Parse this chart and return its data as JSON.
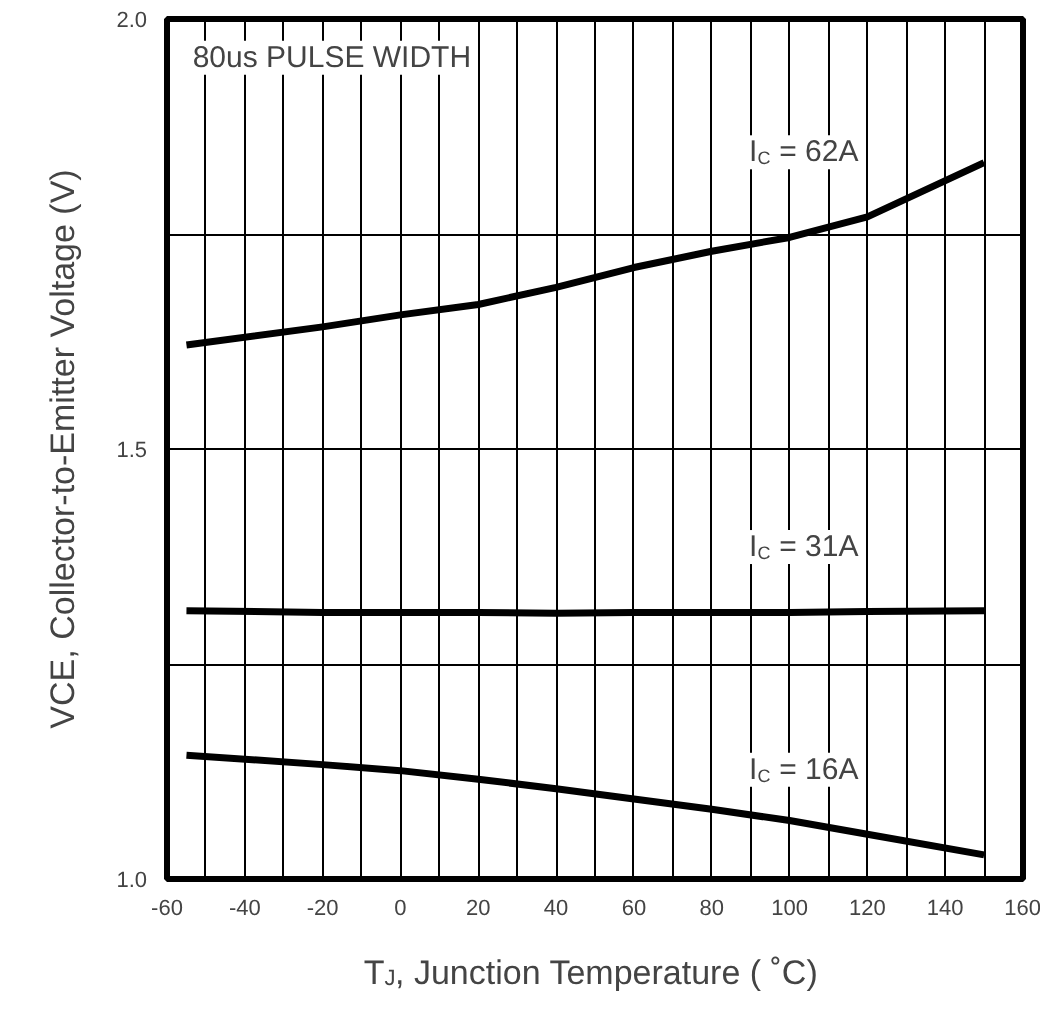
{
  "chart_data": {
    "type": "line",
    "xlabel": "T$_{J}$, Junction Temperature ( ˚C)",
    "ylabel": "VCE, Collector-to-Emitter Voltage (V)",
    "annotations": [
      "80us PULSE WIDTH"
    ],
    "xlim": [
      -60,
      160
    ],
    "xticks": [
      -60,
      {
        "value": -50,
        "label": null
      },
      -40,
      {
        "value": -30,
        "label": null
      },
      -20,
      {
        "value": -10,
        "label": null
      },
      0,
      {
        "value": 10,
        "label": null
      },
      20,
      {
        "value": 30,
        "label": null
      },
      40,
      {
        "value": 50,
        "label": null
      },
      60,
      {
        "value": 70,
        "label": null
      },
      80,
      {
        "value": 90,
        "label": null
      },
      100,
      {
        "value": 110,
        "label": null
      },
      120,
      {
        "value": 130,
        "label": null
      },
      140,
      {
        "value": 150,
        "label": null
      },
      160
    ],
    "ylim": [
      1.0,
      2.0
    ],
    "yticks": [
      {
        "value": 1.0,
        "label": "1.0"
      },
      {
        "value": 1.25,
        "label": null
      },
      {
        "value": 1.5,
        "label": "1.5"
      },
      {
        "value": 1.75,
        "label": null
      },
      {
        "value": 2.0,
        "label": "2.0"
      }
    ],
    "grid": true,
    "x": [
      -55,
      -20,
      0,
      20,
      40,
      60,
      80,
      100,
      120,
      150
    ],
    "series": [
      {
        "name": "I$_{C}$ = 62A",
        "color": "#000000",
        "values": [
          1.621,
          1.642,
          1.656,
          1.668,
          1.688,
          1.711,
          1.73,
          1.746,
          1.77,
          1.833
        ]
      },
      {
        "name": "I$_{C}$ = 31A",
        "color": "#000000",
        "values": [
          1.312,
          1.31,
          1.31,
          1.31,
          1.309,
          1.31,
          1.31,
          1.31,
          1.311,
          1.312
        ]
      },
      {
        "name": "I$_{C}$ = 16A",
        "color": "#000000",
        "values": [
          1.144,
          1.133,
          1.126,
          1.116,
          1.105,
          1.093,
          1.081,
          1.068,
          1.052,
          1.028
        ]
      }
    ]
  }
}
